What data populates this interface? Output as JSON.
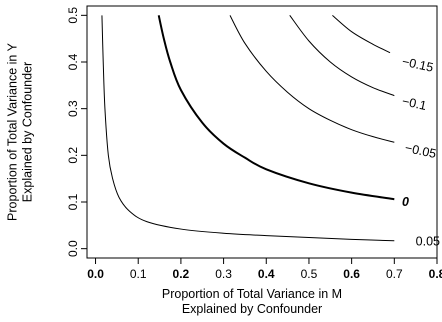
{
  "chart_data": {
    "type": "contour",
    "title": "",
    "xlabel_lines": [
      "Proportion of Total Variance in M",
      "Explained by Confounder"
    ],
    "ylabel_lines": [
      "Proportion of Total Variance in Y",
      "Explained by Confounder"
    ],
    "xlim": [
      -0.02,
      0.8
    ],
    "ylim": [
      -0.02,
      0.52
    ],
    "x_ticks": [
      {
        "value": 0.0,
        "label": "0.0"
      },
      {
        "value": 0.1,
        "label": "0.1"
      },
      {
        "value": 0.2,
        "label": "0.2"
      },
      {
        "value": 0.3,
        "label": "0.3"
      },
      {
        "value": 0.4,
        "label": "0.4"
      },
      {
        "value": 0.5,
        "label": "0.5"
      },
      {
        "value": 0.6,
        "label": "0.6"
      },
      {
        "value": 0.7,
        "label": "0.7"
      },
      {
        "value": 0.8,
        "label": "0.8"
      }
    ],
    "x_bold_ticks": [
      0.0,
      0.2,
      0.4,
      0.6,
      0.8
    ],
    "y_ticks": [
      {
        "value": 0.0,
        "label": "0.0"
      },
      {
        "value": 0.1,
        "label": "0.1"
      },
      {
        "value": 0.2,
        "label": "0.2"
      },
      {
        "value": 0.3,
        "label": "0.3"
      },
      {
        "value": 0.4,
        "label": "0.4"
      },
      {
        "value": 0.5,
        "label": "0.5"
      }
    ],
    "grid": false,
    "contours": [
      {
        "label": "0.05",
        "bold": false,
        "points": [
          [
            0.015,
            0.5
          ],
          [
            0.018,
            0.4
          ],
          [
            0.022,
            0.3
          ],
          [
            0.03,
            0.2
          ],
          [
            0.04,
            0.15
          ],
          [
            0.055,
            0.11
          ],
          [
            0.08,
            0.08
          ],
          [
            0.12,
            0.058
          ],
          [
            0.2,
            0.042
          ],
          [
            0.3,
            0.033
          ],
          [
            0.4,
            0.028
          ],
          [
            0.5,
            0.024
          ],
          [
            0.6,
            0.02
          ],
          [
            0.7,
            0.017
          ]
        ],
        "label_at": [
          0.75,
          0.014
        ]
      },
      {
        "label": "0",
        "bold": true,
        "points": [
          [
            0.148,
            0.5
          ],
          [
            0.16,
            0.45
          ],
          [
            0.175,
            0.4
          ],
          [
            0.2,
            0.34
          ],
          [
            0.25,
            0.27
          ],
          [
            0.3,
            0.225
          ],
          [
            0.35,
            0.195
          ],
          [
            0.4,
            0.17
          ],
          [
            0.5,
            0.14
          ],
          [
            0.6,
            0.12
          ],
          [
            0.7,
            0.106
          ]
        ],
        "label_at": [
          0.718,
          0.098
        ]
      },
      {
        "label": "-0.05",
        "bold": false,
        "points": [
          [
            0.315,
            0.5
          ],
          [
            0.35,
            0.44
          ],
          [
            0.4,
            0.38
          ],
          [
            0.45,
            0.335
          ],
          [
            0.5,
            0.3
          ],
          [
            0.55,
            0.275
          ],
          [
            0.6,
            0.255
          ],
          [
            0.65,
            0.24
          ],
          [
            0.7,
            0.228
          ]
        ],
        "label_at": [
          0.725,
          0.215
        ]
      },
      {
        "label": "-0.1",
        "bold": false,
        "points": [
          [
            0.455,
            0.5
          ],
          [
            0.5,
            0.445
          ],
          [
            0.55,
            0.4
          ],
          [
            0.6,
            0.368
          ],
          [
            0.65,
            0.345
          ],
          [
            0.7,
            0.328
          ]
        ],
        "label_at": [
          0.718,
          0.315
        ]
      },
      {
        "label": "-0.15",
        "bold": false,
        "points": [
          [
            0.555,
            0.5
          ],
          [
            0.6,
            0.465
          ],
          [
            0.65,
            0.438
          ],
          [
            0.69,
            0.42
          ]
        ],
        "label_at": [
          0.718,
          0.4
        ]
      }
    ]
  }
}
